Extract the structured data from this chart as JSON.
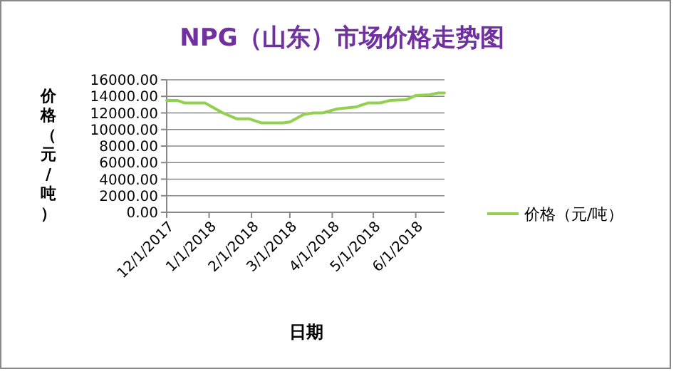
{
  "chart_data": {
    "type": "line",
    "title": "NPG（山东）市场价格走势图",
    "xlabel": "日期",
    "ylabel": "价格（元/吨）",
    "x": [
      "2017-12-01",
      "2017-12-09",
      "2017-12-14",
      "2017-12-29",
      "2018-01-11",
      "2018-01-21",
      "2018-01-30",
      "2018-02-08",
      "2018-02-24",
      "2018-03-01",
      "2018-03-11",
      "2018-03-18",
      "2018-03-25",
      "2018-04-05",
      "2018-04-18",
      "2018-04-27",
      "2018-05-06",
      "2018-05-13",
      "2018-05-25",
      "2018-06-01",
      "2018-06-11",
      "2018-06-17",
      "2018-06-22"
    ],
    "series": [
      {
        "name": "价格（元/吨）",
        "color": "#92d050",
        "values": [
          13500,
          13500,
          13200,
          13200,
          12000,
          11300,
          11300,
          10800,
          10800,
          10900,
          11800,
          12000,
          12000,
          12500,
          12700,
          13200,
          13200,
          13500,
          13600,
          14100,
          14200,
          14400,
          14400
        ]
      }
    ],
    "xlim": [
      "2017-12-01",
      "2018-06-22"
    ],
    "xticks": [
      {
        "value": "2017-12-01",
        "label": "12/1/2017"
      },
      {
        "value": "2018-01-01",
        "label": "1/1/2018"
      },
      {
        "value": "2018-02-01",
        "label": "2/1/2018"
      },
      {
        "value": "2018-03-01",
        "label": "3/1/2018"
      },
      {
        "value": "2018-04-01",
        "label": "4/1/2018"
      },
      {
        "value": "2018-05-01",
        "label": "5/1/2018"
      },
      {
        "value": "2018-06-01",
        "label": "6/1/2018"
      }
    ],
    "ylim": [
      0,
      16000
    ],
    "yticks": [
      {
        "value": 0,
        "label": "0.00"
      },
      {
        "value": 2000,
        "label": "2000.00"
      },
      {
        "value": 4000,
        "label": "4000.00"
      },
      {
        "value": 6000,
        "label": "6000.00"
      },
      {
        "value": 8000,
        "label": "8000.00"
      },
      {
        "value": 10000,
        "label": "10000.00"
      },
      {
        "value": 12000,
        "label": "12000.00"
      },
      {
        "value": 14000,
        "label": "14000.00"
      },
      {
        "value": 16000,
        "label": "16000.00"
      }
    ],
    "grid": "y",
    "legend": "right",
    "marker": "none",
    "line_style": "solid"
  }
}
